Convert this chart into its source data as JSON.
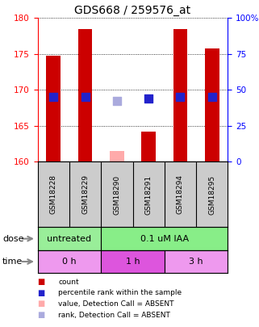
{
  "title": "GDS668 / 259576_at",
  "samples": [
    "GSM18228",
    "GSM18229",
    "GSM18290",
    "GSM18291",
    "GSM18294",
    "GSM18295"
  ],
  "bar_values": [
    174.8,
    178.5,
    161.5,
    164.2,
    178.5,
    175.8
  ],
  "bar_colors": [
    "#cc0000",
    "#cc0000",
    "#ffaaaa",
    "#cc0000",
    "#cc0000",
    "#cc0000"
  ],
  "rank_values": [
    169.0,
    169.0,
    168.5,
    168.8,
    169.0,
    169.0
  ],
  "rank_colors": [
    "#2222cc",
    "#2222cc",
    "#aaaadd",
    "#2222cc",
    "#2222cc",
    "#2222cc"
  ],
  "ylim_left": [
    160,
    180
  ],
  "ylim_right": [
    0,
    100
  ],
  "yticks_left": [
    160,
    165,
    170,
    175,
    180
  ],
  "ytick_labels_right": [
    "0",
    "25",
    "50",
    "75",
    "100%"
  ],
  "yticks_right_vals": [
    0,
    25,
    50,
    75,
    100
  ],
  "dose_labels": [
    [
      "untreated",
      0,
      2
    ],
    [
      "0.1 uM IAA",
      2,
      6
    ]
  ],
  "time_labels": [
    [
      "0 h",
      0,
      2
    ],
    [
      "1 h",
      2,
      4
    ],
    [
      "3 h",
      4,
      6
    ]
  ],
  "dose_color_untreated": "#99ee99",
  "dose_color_iaa": "#88ee88",
  "time_color_light": "#ee99ee",
  "time_color_dark": "#dd55dd",
  "sample_bg": "#cccccc",
  "bg_color": "#ffffff",
  "bar_width": 0.45,
  "rank_marker_size": 55,
  "legend_items": [
    [
      "#cc0000",
      "count"
    ],
    [
      "#2222cc",
      "percentile rank within the sample"
    ],
    [
      "#ffaaaa",
      "value, Detection Call = ABSENT"
    ],
    [
      "#aaaadd",
      "rank, Detection Call = ABSENT"
    ]
  ]
}
